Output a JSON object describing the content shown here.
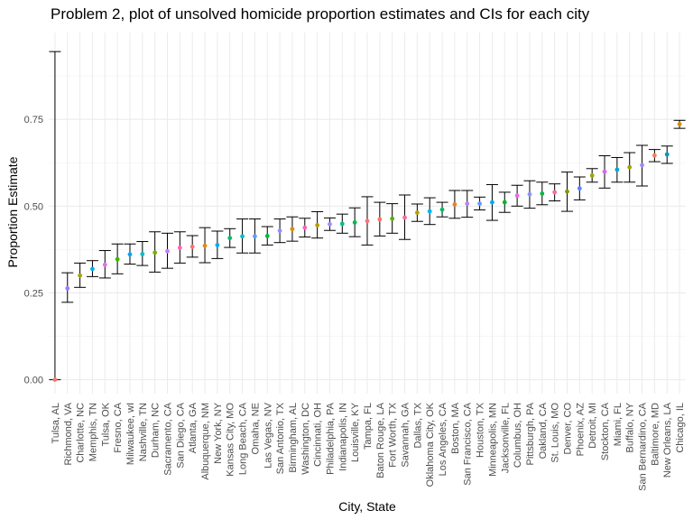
{
  "chart_data": {
    "type": "scatter",
    "title": "Problem 2, plot of unsolved homicide proportion estimates and CIs for each city",
    "xlabel": "City, State",
    "ylabel": "Proportion Estimate",
    "ylim": [
      -0.04,
      1.0
    ],
    "yticks": [
      0.0,
      0.25,
      0.5,
      0.75
    ],
    "ytick_labels": [
      "0.00",
      "0.25",
      "0.50",
      "0.75"
    ],
    "grid": true,
    "legend": "none",
    "error_bars": "confidence interval",
    "points": [
      {
        "city": "Tulsa, AL",
        "estimate": 0.0,
        "lower": 0.0,
        "upper": 0.945,
        "color": "#F8766D"
      },
      {
        "city": "Richmond, VA",
        "estimate": 0.263,
        "lower": 0.223,
        "upper": 0.308,
        "color": "#9D7BFF"
      },
      {
        "city": "Charlotte, NC",
        "estimate": 0.3,
        "lower": 0.266,
        "upper": 0.336,
        "color": "#A3A500"
      },
      {
        "city": "Memphis, TN",
        "estimate": 0.319,
        "lower": 0.297,
        "upper": 0.343,
        "color": "#00B0F6"
      },
      {
        "city": "Tulsa, OK",
        "estimate": 0.331,
        "lower": 0.293,
        "upper": 0.372,
        "color": "#E76BF3"
      },
      {
        "city": "Fresno, CA",
        "estimate": 0.347,
        "lower": 0.305,
        "upper": 0.391,
        "color": "#39B600"
      },
      {
        "city": "Milwaukee, wI",
        "estimate": 0.361,
        "lower": 0.333,
        "upper": 0.391,
        "color": "#00A5FF"
      },
      {
        "city": "Nashville, TN",
        "estimate": 0.362,
        "lower": 0.329,
        "upper": 0.398,
        "color": "#00BFC4"
      },
      {
        "city": "Durham, NC",
        "estimate": 0.366,
        "lower": 0.31,
        "upper": 0.426,
        "color": "#7CAE00"
      },
      {
        "city": "Sacramento, CA",
        "estimate": 0.37,
        "lower": 0.321,
        "upper": 0.422,
        "color": "#C77CFF"
      },
      {
        "city": "San Diego, CA",
        "estimate": 0.38,
        "lower": 0.336,
        "upper": 0.426,
        "color": "#FF61C3"
      },
      {
        "city": "Atlanta, GA",
        "estimate": 0.383,
        "lower": 0.353,
        "upper": 0.415,
        "color": "#F8766D"
      },
      {
        "city": "Albuquerque, NM",
        "estimate": 0.386,
        "lower": 0.337,
        "upper": 0.438,
        "color": "#E7861B"
      },
      {
        "city": "New York, NY",
        "estimate": 0.388,
        "lower": 0.349,
        "upper": 0.428,
        "color": "#00ABFD"
      },
      {
        "city": "Kansas City, MO",
        "estimate": 0.408,
        "lower": 0.381,
        "upper": 0.435,
        "color": "#00BE67"
      },
      {
        "city": "Long Beach, CA",
        "estimate": 0.413,
        "lower": 0.365,
        "upper": 0.463,
        "color": "#00BFC4"
      },
      {
        "city": "Omaha, NE",
        "estimate": 0.413,
        "lower": 0.365,
        "upper": 0.463,
        "color": "#619CFF"
      },
      {
        "city": "Las Vegas, NV",
        "estimate": 0.414,
        "lower": 0.388,
        "upper": 0.441,
        "color": "#00BA38"
      },
      {
        "city": "San Antonio, TX",
        "estimate": 0.429,
        "lower": 0.395,
        "upper": 0.463,
        "color": "#9590FF"
      },
      {
        "city": "Birmingham, AL",
        "estimate": 0.434,
        "lower": 0.399,
        "upper": 0.469,
        "color": "#DE8C00"
      },
      {
        "city": "Washington, DC",
        "estimate": 0.438,
        "lower": 0.411,
        "upper": 0.465,
        "color": "#FF62BC"
      },
      {
        "city": "Cincinnati, OH",
        "estimate": 0.445,
        "lower": 0.408,
        "upper": 0.484,
        "color": "#B79F00"
      },
      {
        "city": "Philadelphia, PA",
        "estimate": 0.448,
        "lower": 0.43,
        "upper": 0.466,
        "color": "#A58AFF"
      },
      {
        "city": "Indianapolis, IN",
        "estimate": 0.449,
        "lower": 0.422,
        "upper": 0.477,
        "color": "#00C08B"
      },
      {
        "city": "Louisville, KY",
        "estimate": 0.453,
        "lower": 0.412,
        "upper": 0.495,
        "color": "#00BB4E"
      },
      {
        "city": "Tampa, FL",
        "estimate": 0.457,
        "lower": 0.388,
        "upper": 0.527,
        "color": "#FC717F"
      },
      {
        "city": "Baton Rouge, LA",
        "estimate": 0.462,
        "lower": 0.414,
        "upper": 0.511,
        "color": "#F8766D"
      },
      {
        "city": "Fort Worth, TX",
        "estimate": 0.464,
        "lower": 0.422,
        "upper": 0.507,
        "color": "#53B400"
      },
      {
        "city": "Savannah, GA",
        "estimate": 0.467,
        "lower": 0.404,
        "upper": 0.532,
        "color": "#FF6C91"
      },
      {
        "city": "Dallas, TX",
        "estimate": 0.481,
        "lower": 0.456,
        "upper": 0.506,
        "color": "#AEA200"
      },
      {
        "city": "Oklahoma City, OK",
        "estimate": 0.485,
        "lower": 0.447,
        "upper": 0.524,
        "color": "#00B6EB"
      },
      {
        "city": "Los Angeles, CA",
        "estimate": 0.49,
        "lower": 0.469,
        "upper": 0.511,
        "color": "#00BD5F"
      },
      {
        "city": "Boston, MA",
        "estimate": 0.505,
        "lower": 0.465,
        "upper": 0.545,
        "color": "#E88526"
      },
      {
        "city": "San Francisco, CA",
        "estimate": 0.507,
        "lower": 0.468,
        "upper": 0.545,
        "color": "#B385FF"
      },
      {
        "city": "Houston, TX",
        "estimate": 0.507,
        "lower": 0.489,
        "upper": 0.526,
        "color": "#619CFF"
      },
      {
        "city": "Minneapolis, MN",
        "estimate": 0.511,
        "lower": 0.459,
        "upper": 0.562,
        "color": "#00A9FF"
      },
      {
        "city": "Jacksonville, FL",
        "estimate": 0.511,
        "lower": 0.482,
        "upper": 0.54,
        "color": "#00B81F"
      },
      {
        "city": "Columbus, OH",
        "estimate": 0.53,
        "lower": 0.5,
        "upper": 0.56,
        "color": "#EF67EB"
      },
      {
        "city": "Pittsburgh, PA",
        "estimate": 0.534,
        "lower": 0.494,
        "upper": 0.573,
        "color": "#8F91FF"
      },
      {
        "city": "Oakland, CA",
        "estimate": 0.536,
        "lower": 0.504,
        "upper": 0.569,
        "color": "#00BA42"
      },
      {
        "city": "St. Louis, MO",
        "estimate": 0.54,
        "lower": 0.515,
        "upper": 0.564,
        "color": "#FF6A98"
      },
      {
        "city": "Denver, CO",
        "estimate": 0.542,
        "lower": 0.485,
        "upper": 0.598,
        "color": "#7F9800"
      },
      {
        "city": "Phoenix, AZ",
        "estimate": 0.551,
        "lower": 0.518,
        "upper": 0.584,
        "color": "#5E80FF"
      },
      {
        "city": "Detroit, MI",
        "estimate": 0.588,
        "lower": 0.569,
        "upper": 0.608,
        "color": "#99A800"
      },
      {
        "city": "Stockton, CA",
        "estimate": 0.599,
        "lower": 0.552,
        "upper": 0.645,
        "color": "#E062F5"
      },
      {
        "city": "Miami, FL",
        "estimate": 0.605,
        "lower": 0.569,
        "upper": 0.64,
        "color": "#00A5D6"
      },
      {
        "city": "Buffalo, NY",
        "estimate": 0.612,
        "lower": 0.569,
        "upper": 0.654,
        "color": "#A6A100"
      },
      {
        "city": "San Bernardino, CA",
        "estimate": 0.618,
        "lower": 0.558,
        "upper": 0.675,
        "color": "#A787FF"
      },
      {
        "city": "Baltimore, MD",
        "estimate": 0.646,
        "lower": 0.628,
        "upper": 0.663,
        "color": "#F17E5F"
      },
      {
        "city": "New Orleans, LA",
        "estimate": 0.649,
        "lower": 0.623,
        "upper": 0.673,
        "color": "#0096C2"
      },
      {
        "city": "Chicago, IL",
        "estimate": 0.736,
        "lower": 0.724,
        "upper": 0.747,
        "color": "#D18C00"
      }
    ]
  }
}
